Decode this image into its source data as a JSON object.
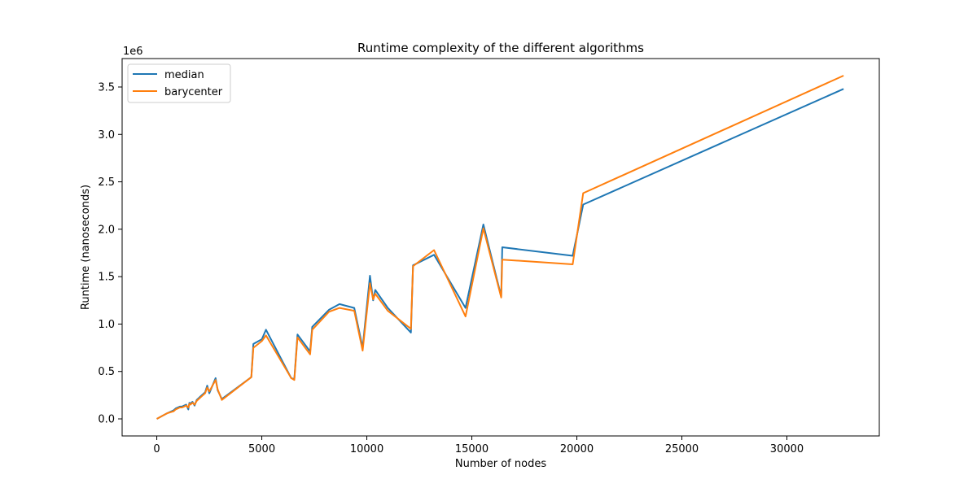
{
  "chart_data": {
    "type": "line",
    "title": "Runtime complexity of the different algorithms",
    "xlabel": "Number of nodes",
    "ylabel": "Runtime (nanoseconds)",
    "y_offset_label": "1e6",
    "xlim": [
      -1650,
      34400
    ],
    "ylim": [
      -0.18,
      3.8
    ],
    "y_scale_factor": 1000000,
    "x_ticks": [
      0,
      5000,
      10000,
      15000,
      20000,
      25000,
      30000
    ],
    "x_tick_labels": [
      "0",
      "5000",
      "10000",
      "15000",
      "20000",
      "25000",
      "30000"
    ],
    "y_ticks": [
      0.0,
      0.5,
      1.0,
      1.5,
      2.0,
      2.5,
      3.0,
      3.5
    ],
    "y_tick_labels": [
      "0.0",
      "0.5",
      "1.0",
      "1.5",
      "2.0",
      "2.5",
      "3.0",
      "3.5"
    ],
    "grid": false,
    "legend_position": "upper-left",
    "series": [
      {
        "name": "median",
        "color": "#1f77b4",
        "x": [
          0,
          250,
          500,
          800,
          900,
          1000,
          1100,
          1200,
          1300,
          1400,
          1500,
          1550,
          1600,
          1700,
          1800,
          1900,
          2000,
          2100,
          2300,
          2400,
          2500,
          2800,
          2900,
          3100,
          4500,
          4600,
          5000,
          5200,
          6400,
          6550,
          6700,
          7300,
          7400,
          8200,
          8700,
          9400,
          9800,
          10150,
          10300,
          10400,
          11000,
          12100,
          12200,
          13200,
          14700,
          15550,
          16400,
          16450,
          19800,
          20300,
          32700
        ],
        "y": [
          0.0,
          0.03,
          0.06,
          0.09,
          0.11,
          0.12,
          0.13,
          0.13,
          0.14,
          0.15,
          0.1,
          0.17,
          0.16,
          0.18,
          0.14,
          0.2,
          0.22,
          0.24,
          0.28,
          0.35,
          0.27,
          0.43,
          0.3,
          0.21,
          0.44,
          0.79,
          0.84,
          0.94,
          0.43,
          0.42,
          0.89,
          0.71,
          0.97,
          1.15,
          1.21,
          1.17,
          0.75,
          1.51,
          1.25,
          1.36,
          1.17,
          0.91,
          1.62,
          1.73,
          1.17,
          2.05,
          1.29,
          1.81,
          1.72,
          2.26,
          3.48
        ]
      },
      {
        "name": "barycenter",
        "color": "#ff7f0e",
        "x": [
          0,
          250,
          500,
          800,
          900,
          1000,
          1100,
          1200,
          1300,
          1400,
          1500,
          1550,
          1600,
          1700,
          1800,
          1900,
          2000,
          2100,
          2300,
          2400,
          2500,
          2800,
          2900,
          3100,
          4500,
          4600,
          5000,
          5200,
          6400,
          6550,
          6700,
          7300,
          7400,
          8200,
          8700,
          9400,
          9800,
          10150,
          10300,
          10400,
          11000,
          12100,
          12200,
          13200,
          14700,
          15550,
          16400,
          16450,
          19800,
          20300,
          32700
        ],
        "y": [
          0.0,
          0.03,
          0.06,
          0.08,
          0.1,
          0.11,
          0.12,
          0.12,
          0.13,
          0.14,
          0.12,
          0.16,
          0.15,
          0.17,
          0.15,
          0.19,
          0.21,
          0.23,
          0.27,
          0.33,
          0.29,
          0.41,
          0.31,
          0.2,
          0.44,
          0.75,
          0.82,
          0.88,
          0.43,
          0.41,
          0.86,
          0.68,
          0.94,
          1.13,
          1.17,
          1.14,
          0.72,
          1.43,
          1.26,
          1.32,
          1.14,
          0.95,
          1.61,
          1.78,
          1.08,
          2.01,
          1.28,
          1.68,
          1.63,
          2.38,
          3.62
        ]
      }
    ]
  }
}
